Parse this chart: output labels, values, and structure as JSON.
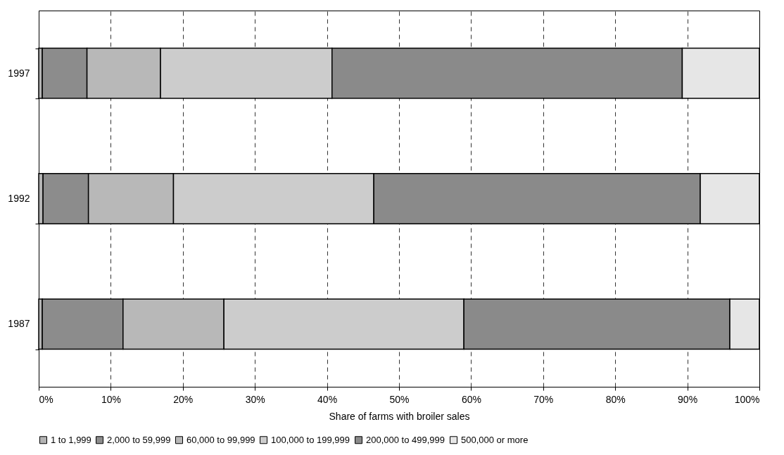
{
  "chart_data": {
    "type": "bar",
    "orientation": "horizontal",
    "stacked": true,
    "xlabel": "Share of farms with broiler sales",
    "categories": [
      "1997",
      "1992",
      "1987"
    ],
    "series": [
      {
        "name": "1 to 1,999",
        "color": "#b4b4b4",
        "values": [
          0.5,
          0.6,
          0.5
        ]
      },
      {
        "name": "2,000 to 59,999",
        "color": "#8c8c8c",
        "values": [
          6.2,
          6.3,
          11.2
        ]
      },
      {
        "name": "60,000 to 99,999",
        "color": "#b8b8b8",
        "values": [
          10.2,
          11.8,
          14.0
        ]
      },
      {
        "name": "100,000 to 199,999",
        "color": "#cccccc",
        "values": [
          23.8,
          27.8,
          33.3
        ]
      },
      {
        "name": "200,000 to 499,999",
        "color": "#8a8a8a",
        "values": [
          48.6,
          45.3,
          36.9
        ]
      },
      {
        "name": "500,000 or more",
        "color": "#e6e6e6",
        "values": [
          10.7,
          8.2,
          4.1
        ]
      }
    ],
    "xlim": [
      0,
      100
    ],
    "xticks": [
      {
        "value": 0,
        "label": "0%"
      },
      {
        "value": 10,
        "label": "10%"
      },
      {
        "value": 20,
        "label": "20%"
      },
      {
        "value": 30,
        "label": "30%"
      },
      {
        "value": 40,
        "label": "40%"
      },
      {
        "value": 50,
        "label": "50%"
      },
      {
        "value": 60,
        "label": "60%"
      },
      {
        "value": 70,
        "label": "70%"
      },
      {
        "value": 80,
        "label": "80%"
      },
      {
        "value": 90,
        "label": "90%"
      },
      {
        "value": 100,
        "label": "100%"
      }
    ],
    "grid": "x",
    "legend": "bottom"
  }
}
